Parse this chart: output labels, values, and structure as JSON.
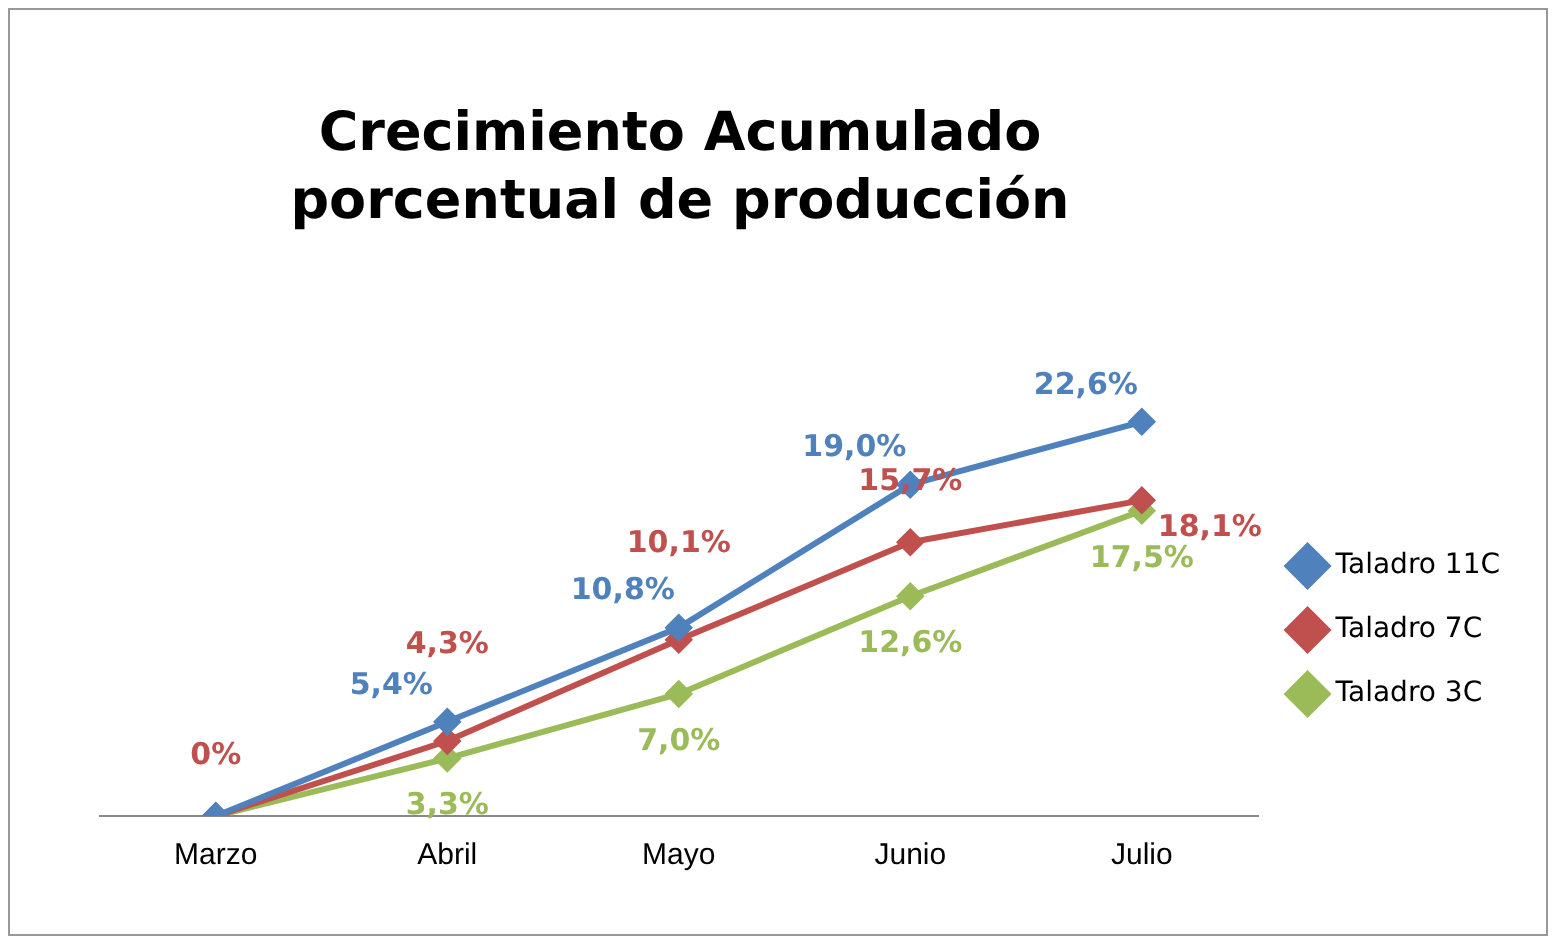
{
  "chart_data": {
    "type": "line",
    "title": "Crecimiento Acumulado porcentual de producción",
    "categories": [
      "Marzo",
      "Abril",
      "Mayo",
      "Junio",
      "Julio"
    ],
    "series": [
      {
        "name": "Taladro 11C",
        "color": "#4f81bd",
        "values": [
          0,
          5.4,
          10.8,
          19.0,
          22.6
        ],
        "value_labels": [
          null,
          "5,4%",
          "10,8%",
          "19,0%",
          "22,6%"
        ]
      },
      {
        "name": "Taladro 7C",
        "color": "#c0504d",
        "values": [
          0,
          4.3,
          10.1,
          15.7,
          18.1
        ],
        "value_labels": [
          "0%",
          "4,3%",
          "10,1%",
          "15,7%",
          "18,1%"
        ]
      },
      {
        "name": "Taladro 3C",
        "color": "#9bbb59",
        "values": [
          0,
          3.3,
          7.0,
          12.6,
          17.5
        ],
        "value_labels": [
          null,
          "3,3%",
          "7,0%",
          "12,6%",
          "17,5%"
        ]
      }
    ],
    "legend": "right",
    "marker": "diamond",
    "line_style": "solid",
    "grid": false,
    "tick_labels": "x"
  }
}
